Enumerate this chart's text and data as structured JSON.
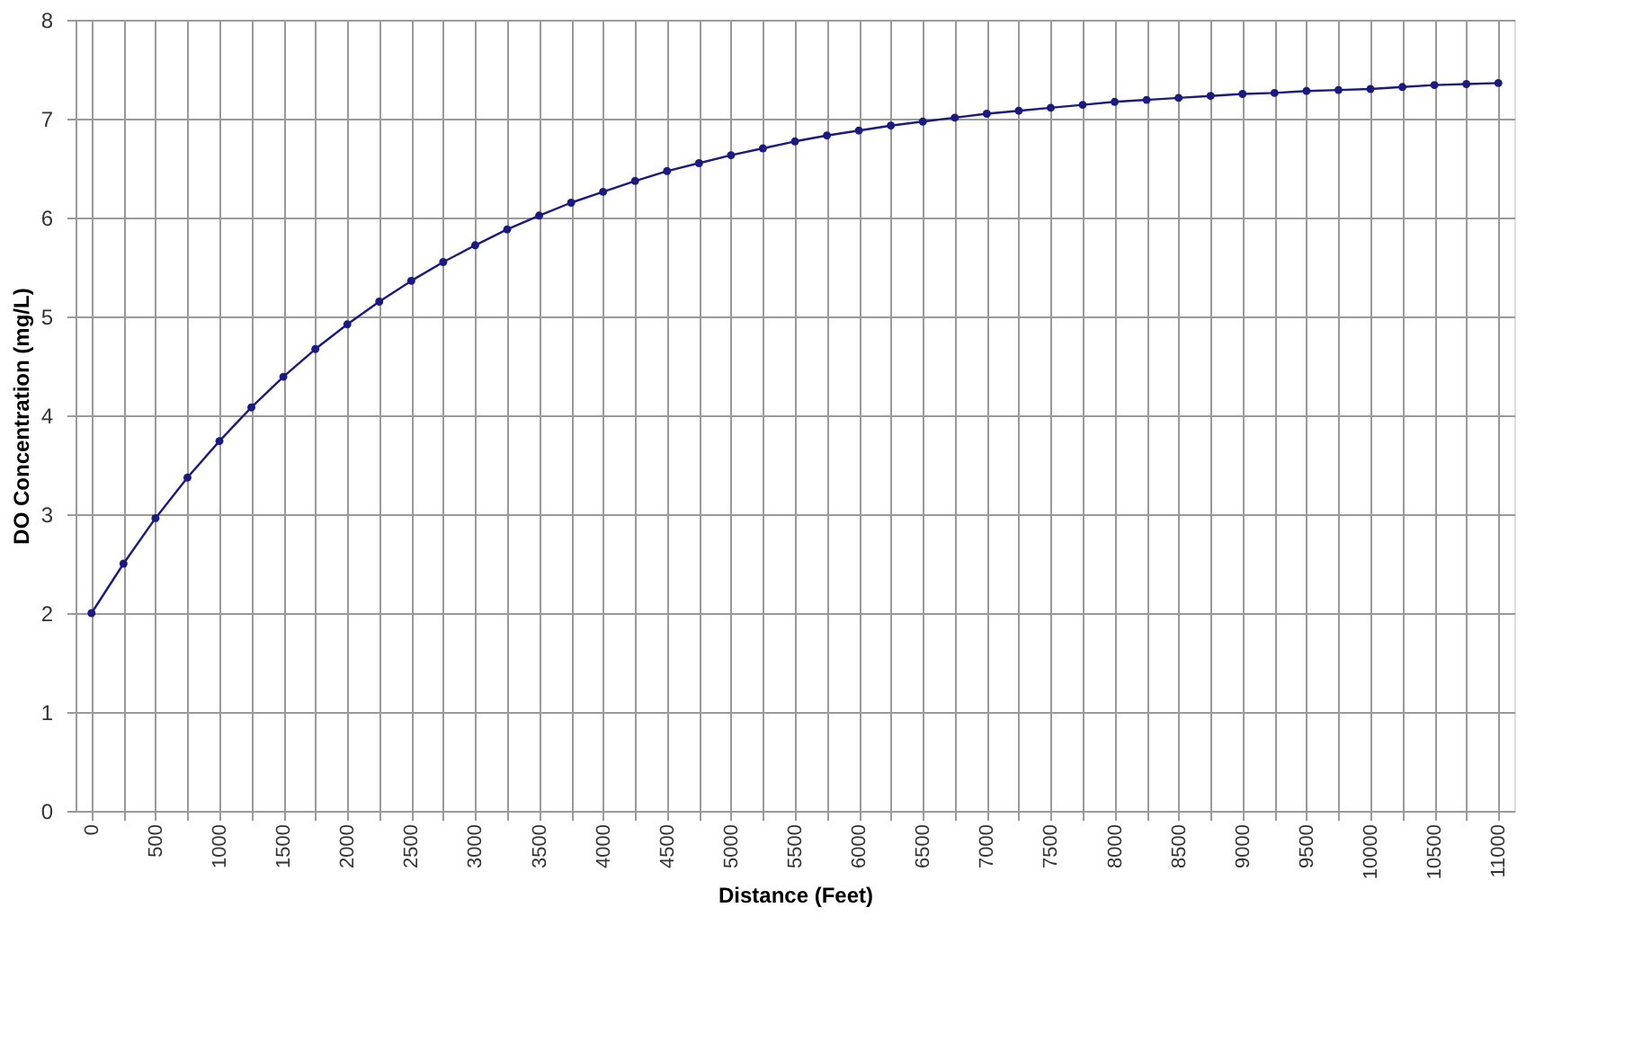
{
  "chart_data": {
    "type": "line",
    "xlabel": "Distance (Feet)",
    "ylabel": "DO Concentration (mg/L)",
    "categories": [
      "0",
      null,
      "500",
      null,
      "1000",
      null,
      "1500",
      null,
      "2000",
      null,
      "2500",
      null,
      "3000",
      null,
      "3500",
      null,
      "4000",
      null,
      "4500",
      null,
      "5000",
      null,
      "5500",
      null,
      "6000",
      null,
      "6500",
      null,
      "7000",
      null,
      "7500",
      null,
      "8000",
      null,
      "8500",
      null,
      "9000",
      null,
      "9500",
      null,
      "10000",
      null,
      "10500",
      null,
      "11000"
    ],
    "series": [
      {
        "color": "#1a1a80",
        "values": [
          2.0,
          2.5,
          2.96,
          3.37,
          3.74,
          4.08,
          4.39,
          4.67,
          4.92,
          5.15,
          5.36,
          5.55,
          5.72,
          5.88,
          6.02,
          6.15,
          6.26,
          6.37,
          6.47,
          6.55,
          6.63,
          6.7,
          6.77,
          6.83,
          6.88,
          6.93,
          6.97,
          7.01,
          7.05,
          7.08,
          7.11,
          7.14,
          7.17,
          7.19,
          7.21,
          7.23,
          7.25,
          7.26,
          7.28,
          7.29,
          7.3,
          7.32,
          7.34,
          7.35,
          7.36
        ]
      }
    ],
    "ylim": [
      0,
      8
    ],
    "yticks": [
      0,
      1,
      2,
      3,
      4,
      5,
      6,
      7,
      8
    ],
    "grid": true,
    "marker": "circle",
    "line_style": "solid"
  }
}
